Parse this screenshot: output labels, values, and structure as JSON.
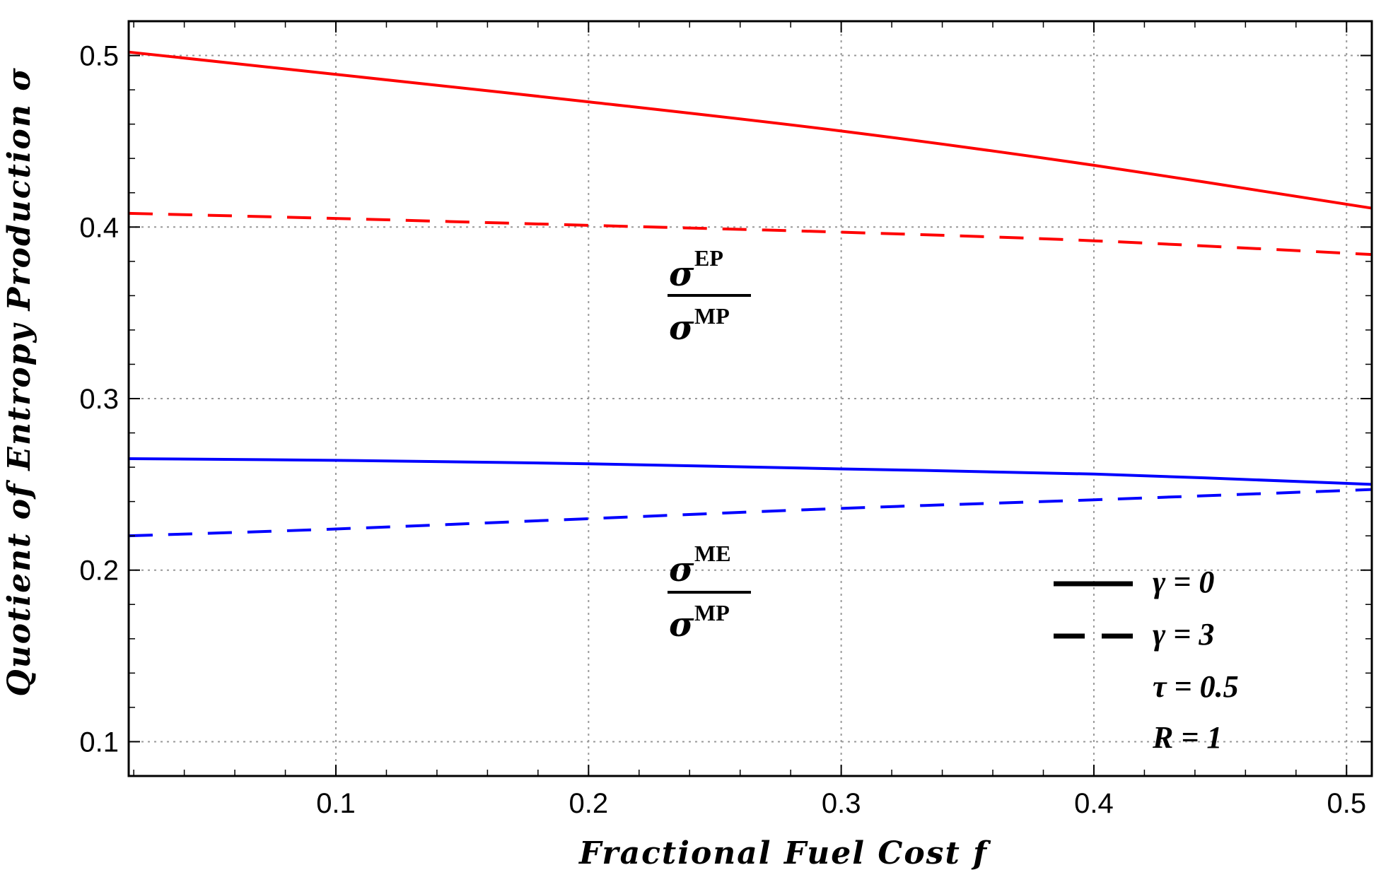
{
  "chart_data": {
    "type": "line",
    "xlabel": "Fractional Fuel Cost f",
    "ylabel": "Quotient of Entropy Production σ",
    "xlim": [
      0.018,
      0.51
    ],
    "ylim": [
      0.08,
      0.52
    ],
    "x_ticks": [
      0.1,
      0.2,
      0.3,
      0.4,
      0.5
    ],
    "x_tick_labels": [
      "0.1",
      "0.2",
      "0.3",
      "0.4",
      "0.5"
    ],
    "y_ticks": [
      0.1,
      0.2,
      0.3,
      0.4,
      0.5
    ],
    "y_tick_labels": [
      "0.1",
      "0.2",
      "0.3",
      "0.4",
      "0.5"
    ],
    "grid": "dotted",
    "x": [
      0.018,
      0.1,
      0.2,
      0.3,
      0.4,
      0.51
    ],
    "series": [
      {
        "name": "EP/MP, γ = 0",
        "color": "#ff0000",
        "style": "solid",
        "values": [
          0.502,
          0.489,
          0.473,
          0.456,
          0.436,
          0.411
        ]
      },
      {
        "name": "EP/MP, γ = 3",
        "color": "#ff0000",
        "style": "dashed",
        "values": [
          0.408,
          0.405,
          0.401,
          0.397,
          0.392,
          0.384
        ]
      },
      {
        "name": "ME/MP, γ = 0",
        "color": "#0000ff",
        "style": "solid",
        "values": [
          0.265,
          0.264,
          0.262,
          0.259,
          0.256,
          0.25
        ]
      },
      {
        "name": "ME/MP, γ = 3",
        "color": "#0000ff",
        "style": "dashed",
        "values": [
          0.22,
          0.224,
          0.23,
          0.236,
          0.241,
          0.247
        ]
      }
    ],
    "annotations": [
      {
        "sym": "σ",
        "num_sup": "EP",
        "den_sup": "MP"
      },
      {
        "sym": "σ",
        "num_sup": "ME",
        "den_sup": "MP"
      }
    ],
    "legend": {
      "position": "bottom-right",
      "entries": [
        {
          "style": "solid",
          "label": "γ = 0"
        },
        {
          "style": "dashed",
          "label": "γ = 3"
        }
      ],
      "params": [
        "τ = 0.5",
        "R = 1"
      ]
    }
  }
}
